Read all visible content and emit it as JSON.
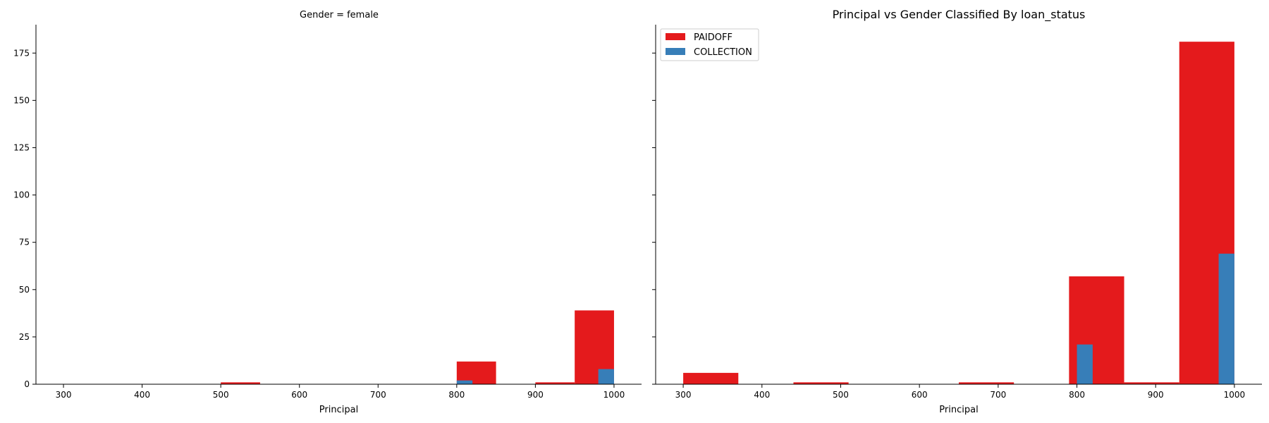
{
  "colors": {
    "PAIDOFF": "#e41a1c",
    "COLLECTION": "#377eb8",
    "axis": "#000000"
  },
  "legend": {
    "position": "upper-left",
    "entries": [
      {
        "label": "PAIDOFF",
        "color_key": "PAIDOFF"
      },
      {
        "label": "COLLECTION",
        "color_key": "COLLECTION"
      }
    ]
  },
  "chart_data": [
    {
      "type": "bar",
      "title": "Gender = female",
      "xlabel": "Principal",
      "ylabel": "",
      "xlim": [
        265,
        1035
      ],
      "ylim": [
        0,
        190
      ],
      "xticks": [
        300,
        400,
        500,
        600,
        700,
        800,
        900,
        1000
      ],
      "yticks": [
        0,
        25,
        50,
        75,
        100,
        125,
        150,
        175
      ],
      "grid": false,
      "series": [
        {
          "name": "PAIDOFF",
          "bars": [
            {
              "x0": 500,
              "x1": 550,
              "value": 1
            },
            {
              "x0": 800,
              "x1": 850,
              "value": 12
            },
            {
              "x0": 900,
              "x1": 950,
              "value": 1
            },
            {
              "x0": 950,
              "x1": 1000,
              "value": 39
            }
          ]
        },
        {
          "name": "COLLECTION",
          "bars": [
            {
              "x0": 800,
              "x1": 820,
              "value": 2
            },
            {
              "x0": 980,
              "x1": 1000,
              "value": 8
            }
          ]
        }
      ]
    },
    {
      "type": "bar",
      "title": "Principal vs Gender Classified By loan_status",
      "xlabel": "Principal",
      "ylabel": "",
      "xlim": [
        265,
        1035
      ],
      "ylim": [
        0,
        190
      ],
      "xticks": [
        300,
        400,
        500,
        600,
        700,
        800,
        900,
        1000
      ],
      "yticks": [
        0,
        25,
        50,
        75,
        100,
        125,
        150,
        175
      ],
      "grid": false,
      "series": [
        {
          "name": "PAIDOFF",
          "bars": [
            {
              "x0": 300,
              "x1": 370,
              "value": 6
            },
            {
              "x0": 440,
              "x1": 510,
              "value": 1
            },
            {
              "x0": 650,
              "x1": 720,
              "value": 1
            },
            {
              "x0": 790,
              "x1": 860,
              "value": 57
            },
            {
              "x0": 860,
              "x1": 930,
              "value": 1
            },
            {
              "x0": 930,
              "x1": 1000,
              "value": 181
            }
          ]
        },
        {
          "name": "COLLECTION",
          "bars": [
            {
              "x0": 800,
              "x1": 820,
              "value": 21
            },
            {
              "x0": 980,
              "x1": 1000,
              "value": 69
            }
          ]
        }
      ]
    }
  ]
}
